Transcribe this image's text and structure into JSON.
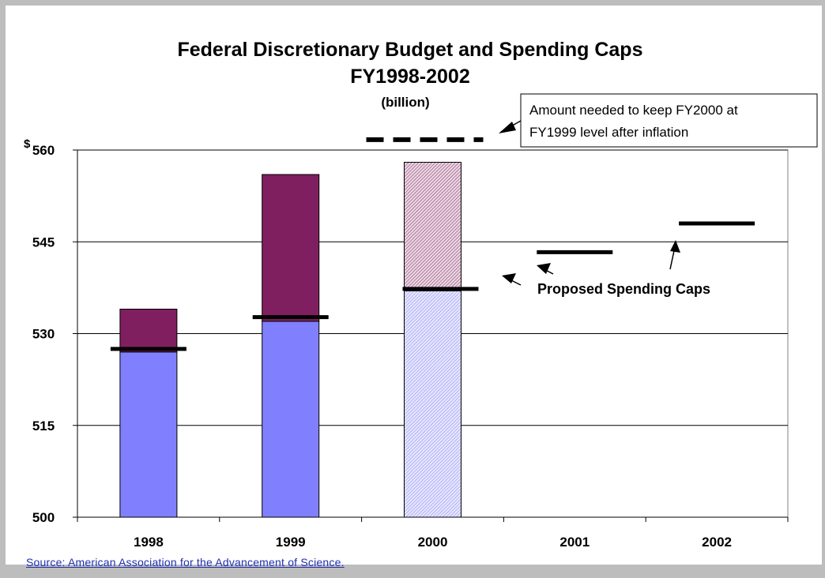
{
  "chart_data": {
    "type": "bar",
    "title": "Federal Discretionary Budget and Spending Caps",
    "subtitle": "FY1998-2002",
    "unit_label": "(billion)",
    "y_unit_symbol": "$",
    "categories": [
      "1998",
      "1999",
      "2000",
      "2001",
      "2002"
    ],
    "ylim": [
      500,
      560
    ],
    "yticks": [
      500,
      515,
      530,
      545,
      560
    ],
    "grid": true,
    "stacked_bars": [
      {
        "category": "1998",
        "lower": 527,
        "total": 534
      },
      {
        "category": "1999",
        "lower": 532,
        "total": 556
      },
      {
        "category": "2000",
        "lower": 537,
        "total": 558,
        "pattern": "hatched"
      }
    ],
    "spending_caps": [
      {
        "category": "1998",
        "value": 527.5
      },
      {
        "category": "1999",
        "value": 532.7
      },
      {
        "category": "2000",
        "value": 537.3
      },
      {
        "category": "2001",
        "value": 543.3
      },
      {
        "category": "2002",
        "value": 548.0
      }
    ],
    "inflation_level": {
      "category": "2000",
      "value": 561.7,
      "style": "dashed"
    },
    "colors": {
      "lower": "#8080ff",
      "upper": "#7f1f5f",
      "cap_line": "#000000",
      "grid": "#000000"
    },
    "annotations": {
      "inflation_box": [
        "Amount needed to keep FY2000 at",
        "FY1999 level after inflation"
      ],
      "caps_label": "Proposed Spending Caps"
    }
  },
  "source": "Source:  American Association for the Advancement of Science."
}
